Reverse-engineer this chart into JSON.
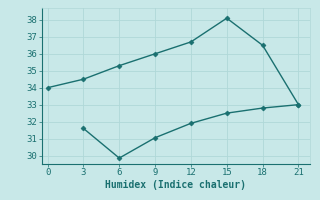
{
  "x_upper": [
    0,
    3,
    6,
    9,
    12,
    15,
    18,
    21
  ],
  "y_upper": [
    34.0,
    34.5,
    35.3,
    36.0,
    36.7,
    38.1,
    36.5,
    33.0
  ],
  "x_lower": [
    3,
    6,
    9,
    12,
    15,
    18,
    21
  ],
  "y_lower": [
    31.6,
    29.85,
    31.05,
    31.9,
    32.5,
    32.8,
    33.0
  ],
  "line_color": "#1a7070",
  "bg_color": "#c8e8e8",
  "grid_color": "#b0d8d8",
  "xlabel": "Humidex (Indice chaleur)",
  "xlim": [
    -0.5,
    22
  ],
  "ylim": [
    29.5,
    38.7
  ],
  "xticks": [
    0,
    3,
    6,
    9,
    12,
    15,
    18,
    21
  ],
  "yticks": [
    30,
    31,
    32,
    33,
    34,
    35,
    36,
    37,
    38
  ],
  "marker": "D",
  "marker_size": 2.5,
  "linewidth": 1.0
}
